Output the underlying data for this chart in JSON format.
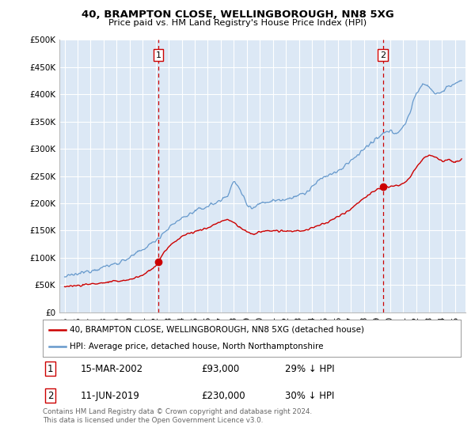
{
  "title1": "40, BRAMPTON CLOSE, WELLINGBOROUGH, NN8 5XG",
  "title2": "Price paid vs. HM Land Registry's House Price Index (HPI)",
  "legend_house": "40, BRAMPTON CLOSE, WELLINGBOROUGH, NN8 5XG (detached house)",
  "legend_hpi": "HPI: Average price, detached house, North Northamptonshire",
  "footnote": "Contains HM Land Registry data © Crown copyright and database right 2024.\nThis data is licensed under the Open Government Licence v3.0.",
  "transaction1_date": "15-MAR-2002",
  "transaction1_price": "£93,000",
  "transaction1_hpi": "29% ↓ HPI",
  "transaction2_date": "11-JUN-2019",
  "transaction2_price": "£230,000",
  "transaction2_hpi": "30% ↓ HPI",
  "ylim": [
    0,
    500000
  ],
  "yticks": [
    0,
    50000,
    100000,
    150000,
    200000,
    250000,
    300000,
    350000,
    400000,
    450000,
    500000
  ],
  "house_color": "#cc0000",
  "hpi_color": "#6699cc",
  "vline_color": "#cc0000",
  "bg_color": "#dce8f5",
  "marker1_x": 2002.2,
  "marker1_y": 93000,
  "marker2_x": 2019.45,
  "marker2_y": 230000,
  "xmin": 1995,
  "xmax": 2025.5
}
